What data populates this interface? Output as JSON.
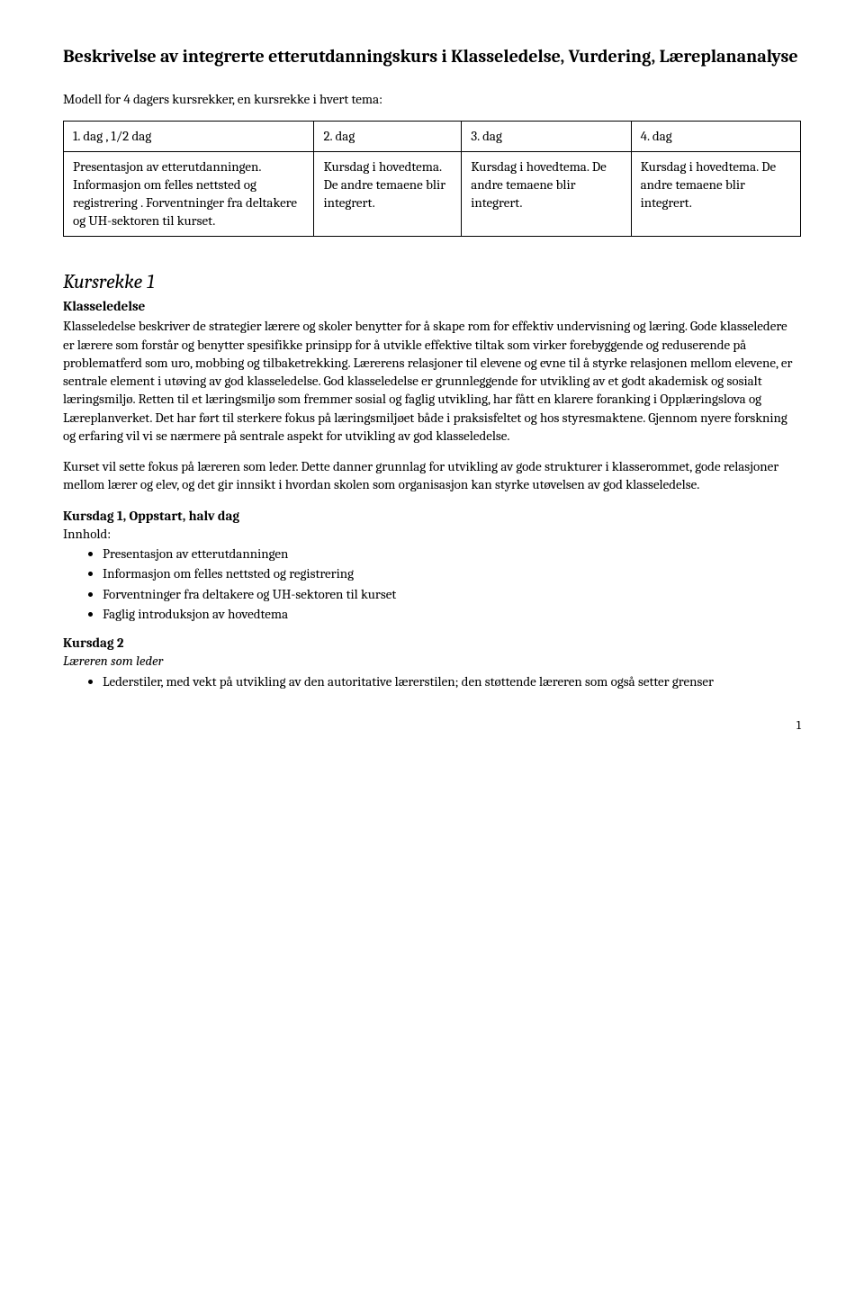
{
  "title": "Beskrivelse av integrerte etterutdanningskurs i Klasseledelse, Vurdering, Læreplananalyse",
  "intro": "Modell for 4 dagers kursrekker, en kursrekke i hvert tema:",
  "table": {
    "headers": [
      "1.  dag , 1/2 dag",
      "2.  dag",
      "3.  dag",
      "4.  dag"
    ],
    "cells": [
      "Presentasjon av etterutdanningen. Informasjon om felles nettsted og registrering . Forventninger fra deltakere og UH-sektoren til kurset.",
      "Kursdag i hovedtema. De andre temaene blir integrert.",
      "Kursdag i hovedtema. De andre temaene blir integrert.",
      "Kursdag i hovedtema. De andre temaene blir integrert."
    ]
  },
  "kursrekke": {
    "heading": "Kursrekke 1",
    "subtitle": "Klasseledelse",
    "para1": "Klasseledelse beskriver de strategier lærere og skoler benytter for å skape rom for effektiv undervisning og læring. Gode klasseledere er lærere som forstår og benytter spesifikke prinsipp for å utvikle effektive tiltak som virker forebyggende og reduserende på problematferd som uro, mobbing og tilbaketrekking. Lærerens relasjoner til elevene og evne til å styrke relasjonen mellom elevene, er sentrale element i utøving av god klasseledelse. God klasseledelse er grunnleggende for utvikling av et godt akademisk og sosialt læringsmiljø. Retten til et læringsmiljø som fremmer sosial og faglig utvikling, har fått en klarere foranking i Opplæringslova og Læreplanverket. Det har ført til sterkere fokus på læringsmiljøet både i praksisfeltet og hos styresmaktene. Gjennom nyere forskning og erfaring vil vi se nærmere på sentrale aspekt for utvikling av god klasseledelse.",
    "para2": "Kurset vil sette fokus på læreren som leder. Dette danner grunnlag for utvikling av gode strukturer i klasserommet, gode relasjoner mellom lærer og elev, og det gir innsikt i hvordan skolen som organisasjon kan styrke utøvelsen av god klasseledelse."
  },
  "kursdag1": {
    "heading": "Kursdag 1, Oppstart, halv dag",
    "subheading": "Innhold:",
    "items": [
      "Presentasjon av etterutdanningen",
      "Informasjon om felles nettsted og registrering",
      "Forventninger fra deltakere og UH-sektoren til kurset",
      "Faglig introduksjon av hovedtema"
    ]
  },
  "kursdag2": {
    "heading": "Kursdag 2",
    "subheading": "Læreren som leder",
    "items": [
      "Lederstiler, med vekt på utvikling av den autoritative lærerstilen; den støttende læreren som også setter grenser"
    ]
  },
  "pageNumber": "1"
}
